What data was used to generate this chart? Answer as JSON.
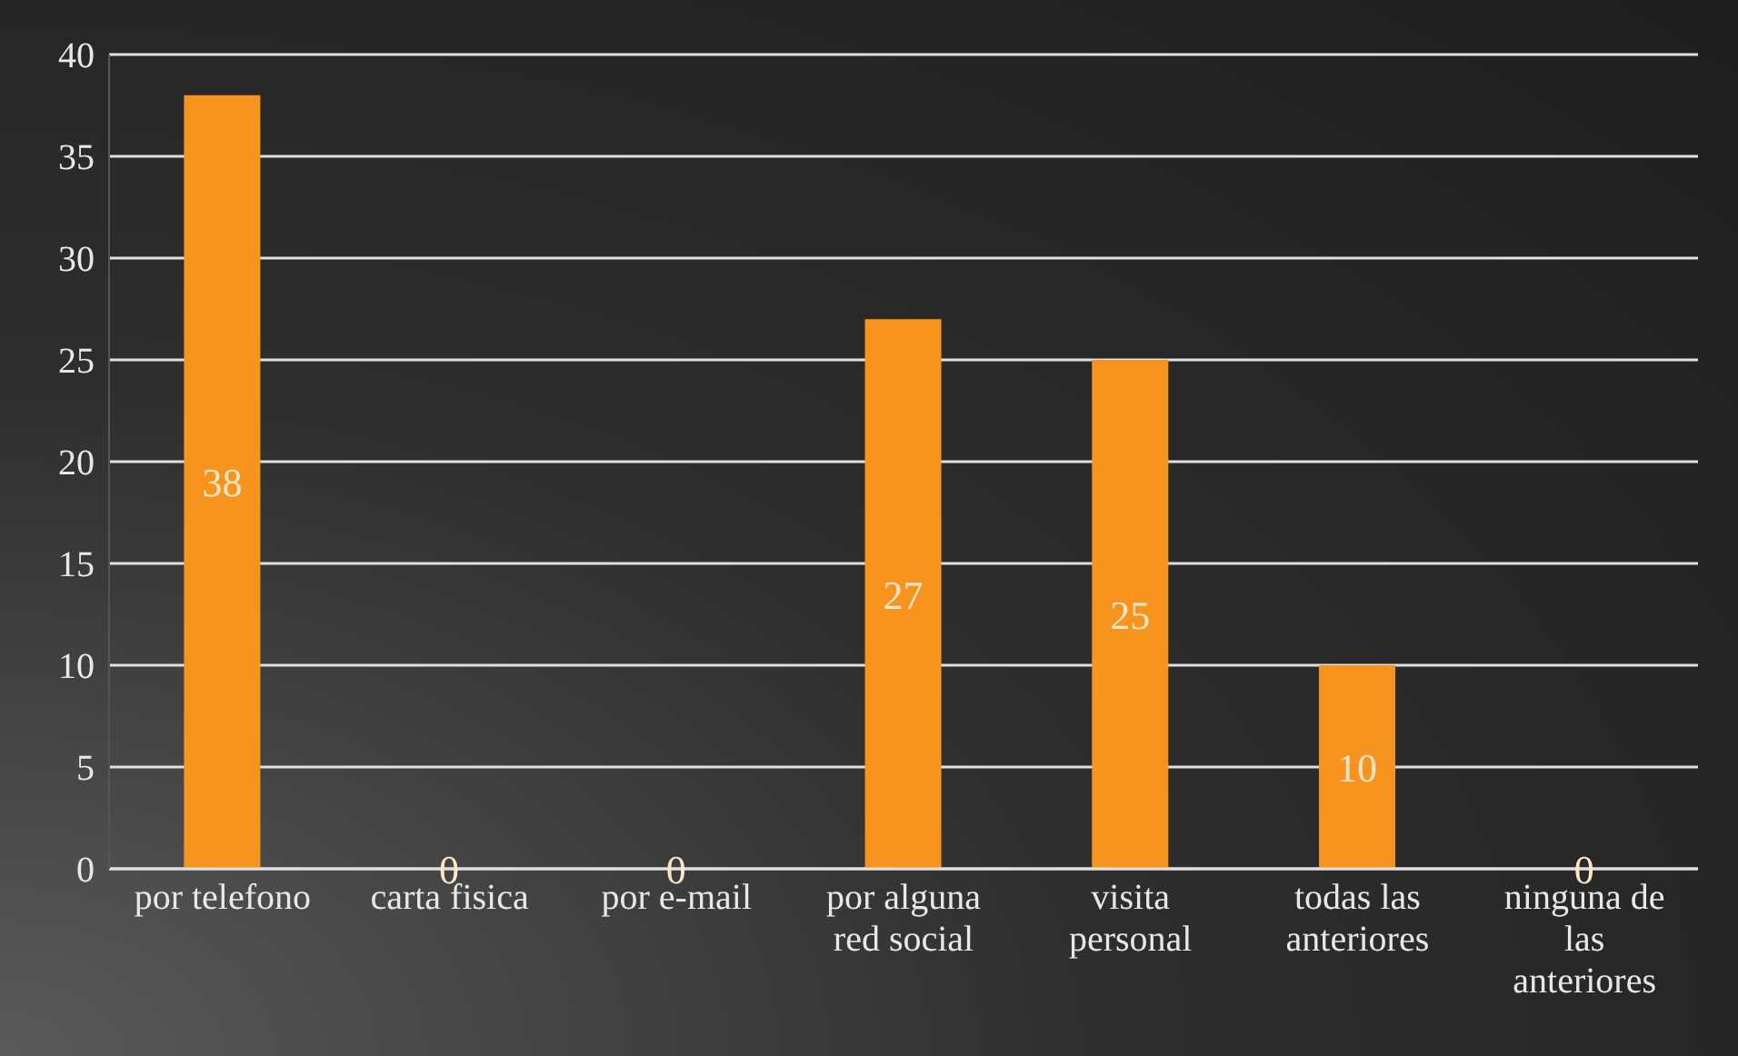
{
  "chart_data": {
    "type": "bar",
    "categories": [
      "por telefono",
      "carta fisica",
      "por e-mail",
      "por alguna red social",
      "visita personal",
      "todas las anteriores",
      "ninguna de las anteriores"
    ],
    "values": [
      38,
      0,
      0,
      27,
      25,
      10,
      0
    ],
    "color": "#f7941d",
    "ylim": [
      0,
      40
    ],
    "yticks": [
      0,
      5,
      10,
      15,
      20,
      25,
      30,
      35,
      40
    ],
    "grid": "y",
    "data_labels": true
  }
}
